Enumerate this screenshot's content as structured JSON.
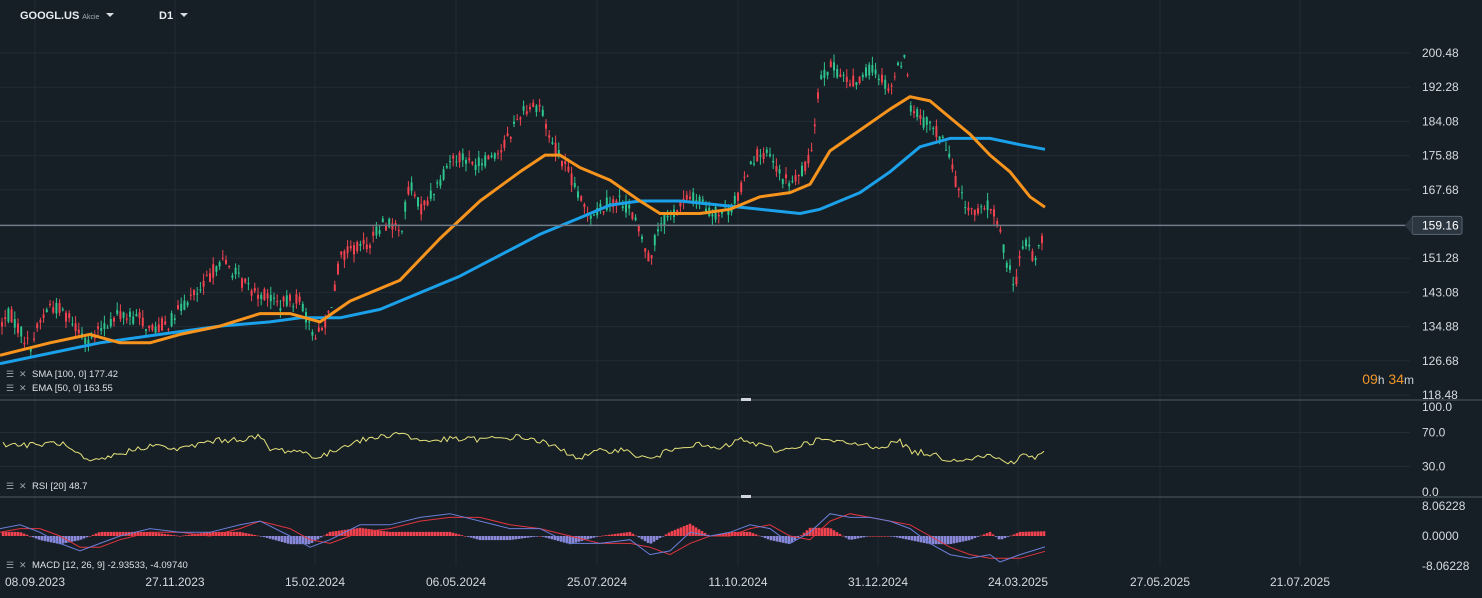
{
  "header": {
    "symbol": "GOOGL.US",
    "type": "Akcie",
    "timeframe": "D1"
  },
  "overlay_legend": {
    "sma": "SMA [100, 0] 177.42",
    "ema": "EMA [50, 0] 163.55"
  },
  "countdown": {
    "hours": "09",
    "h_unit": "h",
    "minutes": "34",
    "m_unit": "m"
  },
  "colors": {
    "background": "#161e26",
    "grid": "#222c35",
    "up": "#2ec48d",
    "down": "#f0434f",
    "ema": "#f7941d",
    "sma": "#1aa1ea",
    "rsi": "#e5e27a",
    "macd": "#6b7fd8",
    "signal": "#e0353f",
    "hist_pos": "#f0434f",
    "hist_neg": "#8a88d8",
    "price_line": "#6f7c87"
  },
  "chart_data": [
    {
      "type": "candlestick",
      "title": "GOOGL.US D1",
      "y_ticks": [
        "200.48",
        "192.28",
        "184.08",
        "175.88",
        "167.68",
        "159.16",
        "151.28",
        "143.08",
        "134.88",
        "126.68",
        "118.48"
      ],
      "ylim": [
        118.48,
        204.5
      ],
      "current_price": "159.16",
      "x_ticks": [
        "08.09.2023",
        "27.11.2023",
        "15.02.2024",
        "06.05.2024",
        "25.07.2024",
        "11.10.2024",
        "31.12.2024",
        "24.03.2025",
        "27.05.2025",
        "21.07.2025"
      ],
      "close_path": [
        [
          0,
          135
        ],
        [
          10,
          138
        ],
        [
          20,
          134
        ],
        [
          30,
          130
        ],
        [
          40,
          136
        ],
        [
          50,
          140
        ],
        [
          60,
          139
        ],
        [
          70,
          137
        ],
        [
          80,
          134
        ],
        [
          90,
          131
        ],
        [
          100,
          134
        ],
        [
          110,
          136
        ],
        [
          120,
          138
        ],
        [
          130,
          137
        ],
        [
          140,
          137
        ],
        [
          150,
          134
        ],
        [
          160,
          135
        ],
        [
          170,
          136
        ],
        [
          180,
          139
        ],
        [
          190,
          142
        ],
        [
          200,
          143
        ],
        [
          210,
          147
        ],
        [
          220,
          151
        ],
        [
          230,
          149
        ],
        [
          240,
          146
        ],
        [
          250,
          144
        ],
        [
          260,
          143
        ],
        [
          270,
          142
        ],
        [
          280,
          140
        ],
        [
          290,
          141
        ],
        [
          300,
          142
        ],
        [
          310,
          134
        ],
        [
          320,
          133
        ],
        [
          330,
          139
        ],
        [
          340,
          151
        ],
        [
          350,
          153
        ],
        [
          360,
          154
        ],
        [
          370,
          155
        ],
        [
          380,
          159
        ],
        [
          390,
          160
        ],
        [
          400,
          157
        ],
        [
          410,
          169
        ],
        [
          420,
          163
        ],
        [
          430,
          166
        ],
        [
          440,
          170
        ],
        [
          450,
          175
        ],
        [
          460,
          176
        ],
        [
          470,
          174
        ],
        [
          480,
          174
        ],
        [
          490,
          176
        ],
        [
          500,
          177
        ],
        [
          510,
          181
        ],
        [
          520,
          186
        ],
        [
          530,
          188
        ],
        [
          540,
          188
        ],
        [
          550,
          180
        ],
        [
          560,
          176
        ],
        [
          570,
          171
        ],
        [
          580,
          165
        ],
        [
          590,
          162
        ],
        [
          600,
          163
        ],
        [
          610,
          165
        ],
        [
          620,
          165
        ],
        [
          630,
          163
        ],
        [
          640,
          157
        ],
        [
          650,
          151
        ],
        [
          660,
          160
        ],
        [
          670,
          161
        ],
        [
          680,
          164
        ],
        [
          690,
          166
        ],
        [
          700,
          165
        ],
        [
          710,
          162
        ],
        [
          720,
          162
        ],
        [
          730,
          163
        ],
        [
          740,
          167
        ],
        [
          750,
          174
        ],
        [
          760,
          177
        ],
        [
          770,
          175
        ],
        [
          780,
          171
        ],
        [
          790,
          169
        ],
        [
          800,
          171
        ],
        [
          810,
          175
        ],
        [
          820,
          195
        ],
        [
          830,
          197
        ],
        [
          840,
          196
        ],
        [
          850,
          193
        ],
        [
          860,
          194
        ],
        [
          870,
          197
        ],
        [
          880,
          195
        ],
        [
          890,
          192
        ],
        [
          900,
          198
        ],
        [
          905,
          201
        ],
        [
          910,
          188
        ],
        [
          920,
          185
        ],
        [
          930,
          183
        ],
        [
          940,
          181
        ],
        [
          950,
          175
        ],
        [
          960,
          166
        ],
        [
          970,
          163
        ],
        [
          980,
          162
        ],
        [
          990,
          164
        ],
        [
          1000,
          158
        ],
        [
          1005,
          152
        ],
        [
          1010,
          148
        ],
        [
          1015,
          145
        ],
        [
          1020,
          151
        ],
        [
          1025,
          155
        ],
        [
          1030,
          154
        ],
        [
          1035,
          150
        ],
        [
          1040,
          155
        ],
        [
          1045,
          159
        ]
      ],
      "series": [
        {
          "name": "EMA [50, 0]",
          "values": [
            [
              0,
              128
            ],
            [
              50,
              131
            ],
            [
              90,
              133
            ],
            [
              120,
              131
            ],
            [
              150,
              131
            ],
            [
              180,
              133
            ],
            [
              220,
              135
            ],
            [
              260,
              138
            ],
            [
              290,
              138
            ],
            [
              320,
              136
            ],
            [
              350,
              141
            ],
            [
              400,
              146
            ],
            [
              440,
              156
            ],
            [
              480,
              165
            ],
            [
              520,
              172
            ],
            [
              545,
              176
            ],
            [
              560,
              176
            ],
            [
              580,
              173
            ],
            [
              610,
              170
            ],
            [
              640,
              165
            ],
            [
              660,
              162
            ],
            [
              700,
              162
            ],
            [
              730,
              163
            ],
            [
              760,
              166
            ],
            [
              790,
              167
            ],
            [
              810,
              169
            ],
            [
              830,
              177
            ],
            [
              860,
              182
            ],
            [
              890,
              187
            ],
            [
              910,
              190
            ],
            [
              930,
              189
            ],
            [
              950,
              185
            ],
            [
              970,
              181
            ],
            [
              990,
              176
            ],
            [
              1010,
              172
            ],
            [
              1030,
              166
            ],
            [
              1045,
              163.5
            ]
          ]
        },
        {
          "name": "SMA [100, 0]",
          "values": [
            [
              0,
              126
            ],
            [
              60,
              129
            ],
            [
              100,
              131
            ],
            [
              160,
              133
            ],
            [
              220,
              135
            ],
            [
              270,
              136
            ],
            [
              300,
              137
            ],
            [
              340,
              137
            ],
            [
              380,
              139
            ],
            [
              420,
              143
            ],
            [
              460,
              147
            ],
            [
              500,
              152
            ],
            [
              540,
              157
            ],
            [
              580,
              161
            ],
            [
              610,
              164
            ],
            [
              640,
              165
            ],
            [
              680,
              165
            ],
            [
              720,
              164
            ],
            [
              760,
              163
            ],
            [
              800,
              162
            ],
            [
              820,
              163
            ],
            [
              860,
              167
            ],
            [
              890,
              172
            ],
            [
              920,
              178
            ],
            [
              950,
              180
            ],
            [
              990,
              180
            ],
            [
              1020,
              178.5
            ],
            [
              1045,
              177.4
            ]
          ]
        }
      ]
    },
    {
      "type": "line",
      "name": "RSI [20]",
      "label": "RSI [20] 48.7",
      "y_ticks": [
        "100.0",
        "70.0",
        "30.0",
        "0.0"
      ],
      "ylim": [
        0,
        100
      ],
      "values": [
        [
          0,
          57
        ],
        [
          30,
          55
        ],
        [
          60,
          58
        ],
        [
          90,
          34
        ],
        [
          120,
          45
        ],
        [
          150,
          55
        ],
        [
          180,
          50
        ],
        [
          210,
          60
        ],
        [
          240,
          62
        ],
        [
          260,
          65
        ],
        [
          270,
          50
        ],
        [
          300,
          48
        ],
        [
          320,
          40
        ],
        [
          350,
          58
        ],
        [
          380,
          65
        ],
        [
          400,
          70
        ],
        [
          420,
          60
        ],
        [
          450,
          62
        ],
        [
          480,
          62
        ],
        [
          500,
          63
        ],
        [
          520,
          65
        ],
        [
          540,
          60
        ],
        [
          560,
          50
        ],
        [
          580,
          40
        ],
        [
          600,
          48
        ],
        [
          620,
          50
        ],
        [
          650,
          38
        ],
        [
          680,
          55
        ],
        [
          700,
          55
        ],
        [
          720,
          50
        ],
        [
          740,
          62
        ],
        [
          760,
          55
        ],
        [
          780,
          48
        ],
        [
          800,
          55
        ],
        [
          820,
          62
        ],
        [
          840,
          58
        ],
        [
          860,
          56
        ],
        [
          880,
          53
        ],
        [
          900,
          60
        ],
        [
          910,
          48
        ],
        [
          930,
          45
        ],
        [
          950,
          38
        ],
        [
          970,
          40
        ],
        [
          990,
          43
        ],
        [
          1000,
          38
        ],
        [
          1015,
          35
        ],
        [
          1025,
          45
        ],
        [
          1035,
          40
        ],
        [
          1045,
          48.7
        ]
      ]
    },
    {
      "type": "bar",
      "name": "MACD [12, 26, 9]",
      "label": "MACD [12, 26, 9] -2.93533, -4.09740",
      "y_ticks": [
        "8.06228",
        "0.0000",
        "-8.06228"
      ],
      "ylim": [
        -9,
        9
      ],
      "macd_value": -2.93533,
      "signal_value": -4.0974,
      "macd_line": [
        [
          0,
          2
        ],
        [
          20,
          3
        ],
        [
          40,
          1
        ],
        [
          60,
          -2
        ],
        [
          80,
          -4
        ],
        [
          100,
          -2
        ],
        [
          120,
          0
        ],
        [
          150,
          2
        ],
        [
          180,
          1
        ],
        [
          210,
          1
        ],
        [
          240,
          3
        ],
        [
          260,
          4
        ],
        [
          290,
          0
        ],
        [
          310,
          -3
        ],
        [
          330,
          -1
        ],
        [
          360,
          3
        ],
        [
          390,
          3
        ],
        [
          420,
          5
        ],
        [
          450,
          6
        ],
        [
          480,
          4
        ],
        [
          510,
          2
        ],
        [
          540,
          2
        ],
        [
          570,
          -2
        ],
        [
          600,
          -2
        ],
        [
          630,
          -1
        ],
        [
          650,
          -5
        ],
        [
          670,
          -4
        ],
        [
          690,
          1
        ],
        [
          710,
          0
        ],
        [
          730,
          1
        ],
        [
          750,
          3
        ],
        [
          770,
          2
        ],
        [
          790,
          -2
        ],
        [
          810,
          1
        ],
        [
          830,
          6
        ],
        [
          850,
          5
        ],
        [
          870,
          5
        ],
        [
          890,
          4
        ],
        [
          910,
          2
        ],
        [
          930,
          -2
        ],
        [
          950,
          -5
        ],
        [
          970,
          -6
        ],
        [
          990,
          -5
        ],
        [
          1000,
          -7
        ],
        [
          1020,
          -5
        ],
        [
          1045,
          -2.94
        ]
      ],
      "signal_line": [
        [
          0,
          1
        ],
        [
          20,
          2
        ],
        [
          40,
          2
        ],
        [
          60,
          0
        ],
        [
          80,
          -3
        ],
        [
          100,
          -3
        ],
        [
          120,
          -1
        ],
        [
          150,
          1
        ],
        [
          180,
          1
        ],
        [
          210,
          0
        ],
        [
          240,
          2
        ],
        [
          260,
          4
        ],
        [
          290,
          2
        ],
        [
          310,
          -1
        ],
        [
          330,
          -2
        ],
        [
          360,
          1
        ],
        [
          390,
          2
        ],
        [
          420,
          4
        ],
        [
          450,
          5
        ],
        [
          480,
          5
        ],
        [
          510,
          3
        ],
        [
          540,
          2
        ],
        [
          570,
          0
        ],
        [
          600,
          -2
        ],
        [
          630,
          -2
        ],
        [
          650,
          -3
        ],
        [
          670,
          -5
        ],
        [
          690,
          -2
        ],
        [
          710,
          0
        ],
        [
          730,
          0
        ],
        [
          750,
          2
        ],
        [
          770,
          3
        ],
        [
          790,
          0
        ],
        [
          810,
          -1
        ],
        [
          830,
          4
        ],
        [
          850,
          6
        ],
        [
          870,
          5
        ],
        [
          890,
          4
        ],
        [
          910,
          3
        ],
        [
          930,
          0
        ],
        [
          950,
          -3
        ],
        [
          970,
          -5
        ],
        [
          990,
          -6
        ],
        [
          1000,
          -6
        ],
        [
          1020,
          -6
        ],
        [
          1045,
          -4.1
        ]
      ]
    }
  ]
}
